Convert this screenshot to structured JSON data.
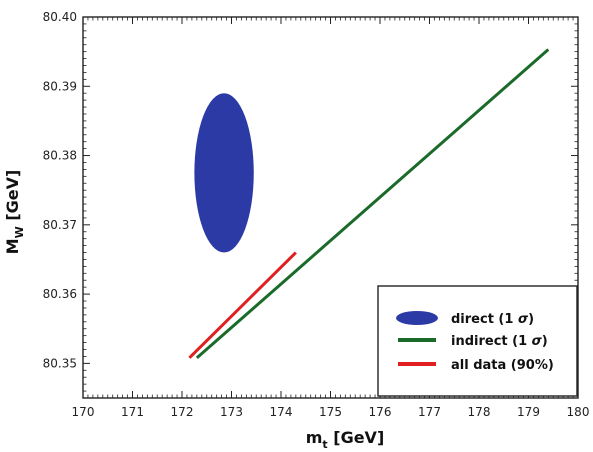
{
  "chart_data": {
    "type": "scatter",
    "title": "",
    "xlabel": {
      "main": "m",
      "sub": "t",
      "unit": " [GeV]"
    },
    "ylabel": {
      "main": "M",
      "sub": "W",
      "unit": " [GeV]"
    },
    "xlim": [
      170,
      180
    ],
    "ylim": [
      80.345,
      80.4
    ],
    "xticks": [
      "170",
      "171",
      "172",
      "173",
      "174",
      "175",
      "176",
      "177",
      "178",
      "179",
      "180"
    ],
    "yticks": [
      "80.35",
      "80.36",
      "80.37",
      "80.38",
      "80.39",
      "80.40"
    ],
    "ytick_values": [
      80.35,
      80.36,
      80.37,
      80.38,
      80.39,
      80.4
    ],
    "series": [
      {
        "name": "direct (1 σ)",
        "kind": "ellipse",
        "color": "#2c3aa6",
        "center": [
          172.85,
          80.3775
        ],
        "half_width_x": 0.6,
        "half_height_y": 0.0115
      },
      {
        "name": "indirect (1 σ)",
        "kind": "band",
        "color": "#1a6b2a",
        "x": [
          172.3,
          179.4
        ],
        "y": [
          80.3508,
          80.3953
        ]
      },
      {
        "name": "all data (90%)",
        "kind": "band",
        "color": "#e02020",
        "x": [
          172.15,
          174.3
        ],
        "y": [
          80.3508,
          80.366
        ]
      }
    ],
    "legend": {
      "placement": "bottom-right",
      "entries": [
        {
          "label_main": "direct (1 ",
          "sigma": "σ",
          "label_end": ")"
        },
        {
          "label_main": "indirect (1 ",
          "sigma": "σ",
          "label_end": ")"
        },
        {
          "label_main": "all data (90%)",
          "sigma": "",
          "label_end": ""
        }
      ]
    }
  }
}
